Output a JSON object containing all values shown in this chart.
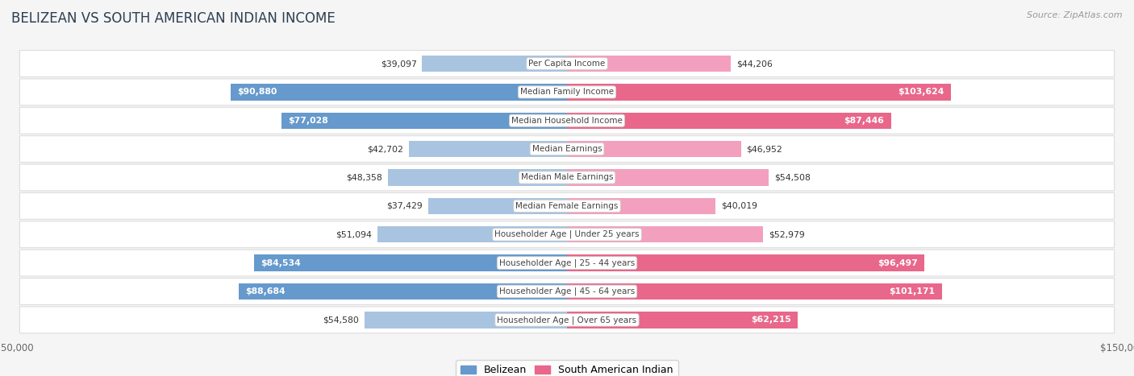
{
  "title": "BELIZEAN VS SOUTH AMERICAN INDIAN INCOME",
  "source": "Source: ZipAtlas.com",
  "categories": [
    "Per Capita Income",
    "Median Family Income",
    "Median Household Income",
    "Median Earnings",
    "Median Male Earnings",
    "Median Female Earnings",
    "Householder Age | Under 25 years",
    "Householder Age | 25 - 44 years",
    "Householder Age | 45 - 64 years",
    "Householder Age | Over 65 years"
  ],
  "belizean_values": [
    39097,
    90880,
    77028,
    42702,
    48358,
    37429,
    51094,
    84534,
    88684,
    54580
  ],
  "south_american_values": [
    44206,
    103624,
    87446,
    46952,
    54508,
    40019,
    52979,
    96497,
    101171,
    62215
  ],
  "belizean_labels": [
    "$39,097",
    "$90,880",
    "$77,028",
    "$42,702",
    "$48,358",
    "$37,429",
    "$51,094",
    "$84,534",
    "$88,684",
    "$54,580"
  ],
  "south_american_labels": [
    "$44,206",
    "$103,624",
    "$87,446",
    "$46,952",
    "$54,508",
    "$40,019",
    "$52,979",
    "$96,497",
    "$101,171",
    "$62,215"
  ],
  "belizean_color_light": "#a8c4e0",
  "belizean_color_dark": "#6699cc",
  "south_american_color_light": "#f2a0be",
  "south_american_color_dark": "#e8678a",
  "axis_limit": 150000,
  "background_color": "#f5f5f5",
  "row_bg_color": "#ffffff",
  "row_border_color": "#dddddd",
  "label_box_color": "#ffffff",
  "dark_threshold": 60000,
  "title_color": "#2c3e50",
  "source_color": "#999999",
  "label_dark_color": "#333333",
  "center_label_color": "#444444"
}
